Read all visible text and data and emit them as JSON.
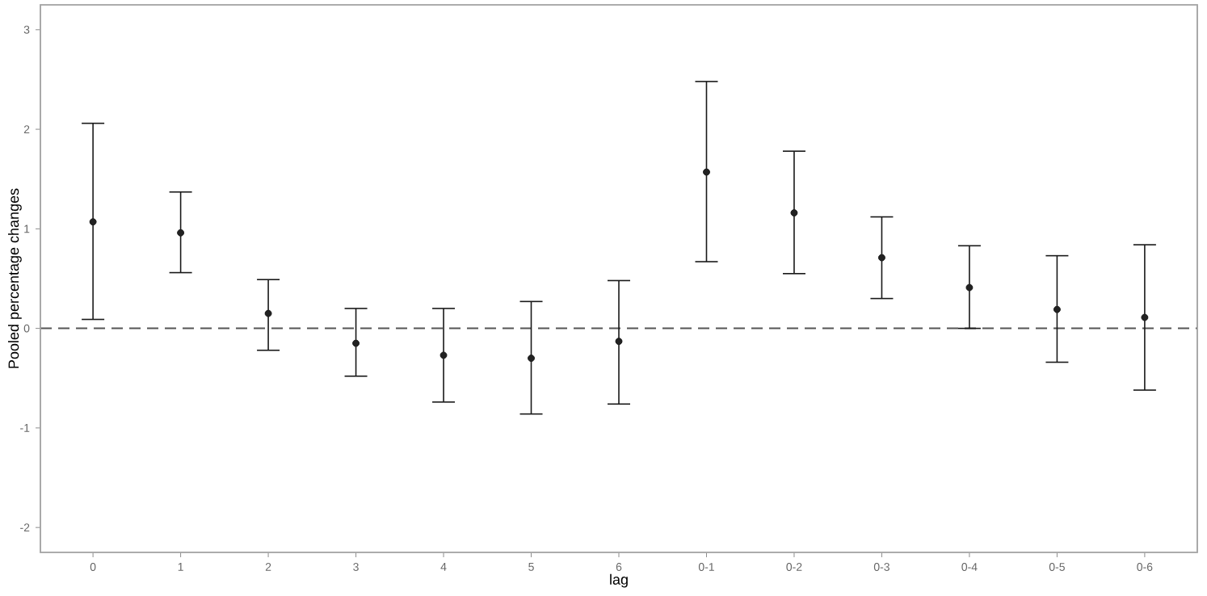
{
  "chart_data": {
    "type": "scatter",
    "xlabel": "lag",
    "ylabel": "Pooled percentage changes",
    "categories": [
      "0",
      "1",
      "2",
      "3",
      "4",
      "5",
      "6",
      "0-1",
      "0-2",
      "0-3",
      "0-4",
      "0-5",
      "0-6"
    ],
    "values": [
      1.07,
      0.96,
      0.15,
      -0.15,
      -0.27,
      -0.3,
      -0.13,
      1.57,
      1.16,
      0.71,
      0.41,
      0.19,
      0.11
    ],
    "errors": [
      [
        0.09,
        2.06
      ],
      [
        0.56,
        1.37
      ],
      [
        -0.22,
        0.49
      ],
      [
        -0.48,
        0.2
      ],
      [
        -0.74,
        0.2
      ],
      [
        -0.86,
        0.27
      ],
      [
        -0.76,
        0.48
      ],
      [
        0.67,
        2.48
      ],
      [
        0.55,
        1.78
      ],
      [
        0.3,
        1.12
      ],
      [
        0.0,
        0.83
      ],
      [
        -0.34,
        0.73
      ],
      [
        -0.62,
        0.84
      ]
    ],
    "color": "#222222",
    "marker": "circle",
    "grid": false,
    "legend": false,
    "ylim": [
      -2.25,
      3.25
    ],
    "yticks": [
      -2,
      -1,
      0,
      1,
      2,
      3
    ],
    "ref_lines": [
      {
        "axis": "y",
        "value": 0,
        "color": "#555555",
        "line_style": "dashed"
      }
    ]
  }
}
